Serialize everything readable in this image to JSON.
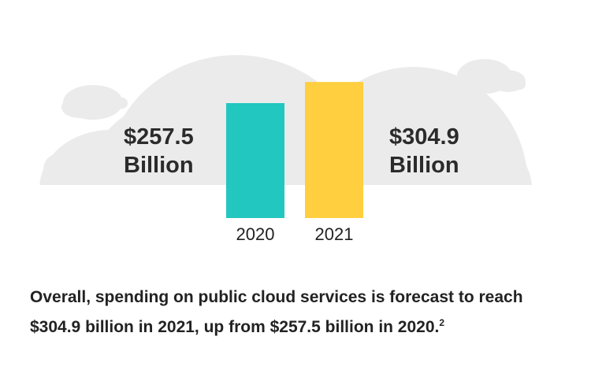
{
  "chart_data": {
    "type": "bar",
    "categories": [
      "2020",
      "2021"
    ],
    "values": [
      257.5,
      304.9
    ],
    "value_labels": [
      "$257.5 Billion",
      "$304.9 Billion"
    ],
    "colors": [
      "#22c7c0",
      "#ffcf3f"
    ],
    "caption": "Overall, spending on public cloud services is forecast to reach $304.9 billion in 2021, up from $257.5 billion in 2020.",
    "caption_note": "2"
  }
}
